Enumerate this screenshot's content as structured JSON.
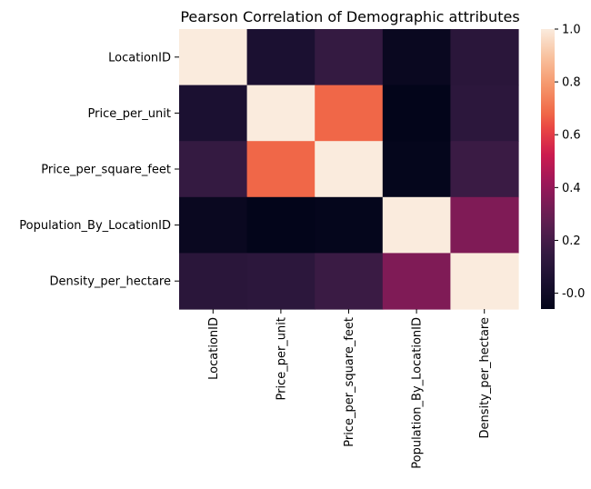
{
  "chart_data": {
    "type": "heatmap",
    "title": "Pearson Correlation of Demographic attributes",
    "xlabel": "",
    "ylabel": "",
    "rows": [
      "LocationID",
      "Price_per_unit",
      "Price_per_square_feet",
      "Population_By_LocationID",
      "Density_per_hectare"
    ],
    "columns": [
      "LocationID",
      "Price_per_unit",
      "Price_per_square_feet",
      "Population_By_LocationID",
      "Density_per_hectare"
    ],
    "values": [
      [
        1.0,
        0.05,
        0.15,
        -0.03,
        0.11
      ],
      [
        0.05,
        1.0,
        0.68,
        -0.06,
        0.12
      ],
      [
        0.15,
        0.68,
        1.0,
        -0.05,
        0.17
      ],
      [
        -0.03,
        -0.06,
        -0.05,
        1.0,
        0.35
      ],
      [
        0.11,
        0.12,
        0.17,
        0.35,
        1.0
      ]
    ],
    "colorbar": {
      "min": -0.06,
      "max": 1.0,
      "ticks": [
        "-0.0",
        "0.2",
        "0.4",
        "0.6",
        "0.8",
        "1.0"
      ],
      "colormap": "rocket"
    }
  }
}
